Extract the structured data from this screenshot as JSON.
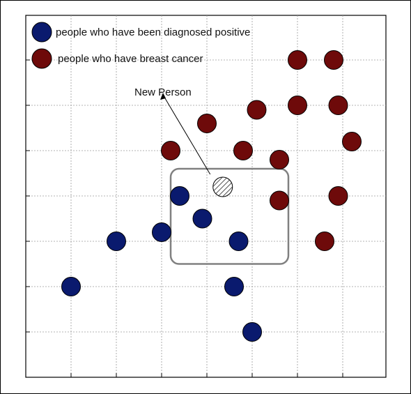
{
  "chart_data": {
    "type": "scatter",
    "title": "",
    "xlabel": "",
    "ylabel": "",
    "grid": true,
    "legend_position": "top-left",
    "xlim": [
      0,
      8
    ],
    "ylim": [
      0,
      8
    ],
    "series": [
      {
        "name": "people who have been diagnosed positive",
        "color": "#0a1a6e",
        "points": [
          {
            "x": 1.0,
            "y": 2.0
          },
          {
            "x": 2.0,
            "y": 3.0
          },
          {
            "x": 3.0,
            "y": 3.2
          },
          {
            "x": 3.4,
            "y": 4.0
          },
          {
            "x": 3.9,
            "y": 3.5
          },
          {
            "x": 4.7,
            "y": 3.0
          },
          {
            "x": 4.6,
            "y": 2.0
          },
          {
            "x": 5.0,
            "y": 1.0
          }
        ]
      },
      {
        "name": "people who have breast cancer",
        "color": "#6e0a0a",
        "points": [
          {
            "x": 6.0,
            "y": 7.0
          },
          {
            "x": 6.8,
            "y": 7.0
          },
          {
            "x": 5.1,
            "y": 5.9
          },
          {
            "x": 6.0,
            "y": 6.0
          },
          {
            "x": 6.9,
            "y": 6.0
          },
          {
            "x": 4.0,
            "y": 5.6
          },
          {
            "x": 7.2,
            "y": 5.2
          },
          {
            "x": 3.2,
            "y": 5.0
          },
          {
            "x": 4.8,
            "y": 5.0
          },
          {
            "x": 5.6,
            "y": 4.8
          },
          {
            "x": 5.6,
            "y": 3.9
          },
          {
            "x": 6.9,
            "y": 4.0
          },
          {
            "x": 6.6,
            "y": 3.0
          }
        ]
      }
    ],
    "new_point": {
      "label": "New Person",
      "x": 4.35,
      "y": 4.2
    },
    "neighborhood_box": {
      "x0": 3.2,
      "x1": 5.8,
      "y0": 2.5,
      "y1": 4.6
    }
  }
}
